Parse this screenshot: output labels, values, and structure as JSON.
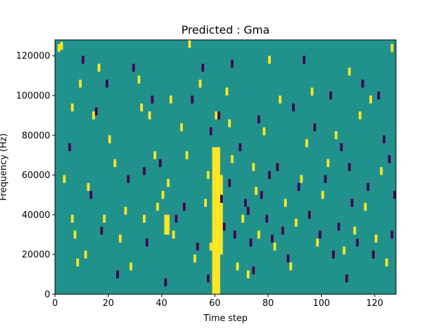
{
  "chart_data": {
    "type": "heatmap",
    "title": "Predicted : Gma",
    "xlabel": "Time step",
    "ylabel": "Frequency (Hz)",
    "xlim": [
      0,
      128
    ],
    "ylim": [
      0,
      128000
    ],
    "x_ticks": [
      0,
      20,
      40,
      60,
      80,
      100,
      120
    ],
    "y_ticks": [
      0,
      20000,
      40000,
      60000,
      80000,
      100000,
      120000
    ],
    "n_time_steps": 128,
    "n_freq_bins": 128,
    "colormap": "viridis",
    "values": [
      -1,
      0,
      1
    ],
    "colors": {
      "-1": "#440154",
      "0": "#21918c",
      "1": "#fde725"
    },
    "background_value": 0,
    "bands_value_1": [
      {
        "t0": 59,
        "t1": 62,
        "f0": 0,
        "f1": 74000
      },
      {
        "t0": 62,
        "t1": 63,
        "f0": 20000,
        "f1": 60000
      },
      {
        "t0": 41,
        "t1": 43,
        "f0": 30000,
        "f1": 40000
      }
    ],
    "cells_value_1": [
      [
        1,
        122000
      ],
      [
        2,
        123000
      ],
      [
        6,
        92000
      ],
      [
        6,
        36000
      ],
      [
        7,
        28000
      ],
      [
        8,
        14000
      ],
      [
        9,
        104000
      ],
      [
        12,
        52000
      ],
      [
        14,
        88000
      ],
      [
        16,
        112000
      ],
      [
        18,
        36000
      ],
      [
        20,
        76000
      ],
      [
        22,
        64000
      ],
      [
        24,
        26000
      ],
      [
        26,
        40000
      ],
      [
        28,
        12000
      ],
      [
        31,
        106000
      ],
      [
        32,
        92000
      ],
      [
        33,
        36000
      ],
      [
        35,
        88000
      ],
      [
        38,
        42000
      ],
      [
        40,
        48000
      ],
      [
        42,
        54000
      ],
      [
        43,
        96000
      ],
      [
        44,
        28000
      ],
      [
        47,
        82000
      ],
      [
        49,
        68000
      ],
      [
        50,
        124000
      ],
      [
        52,
        16000
      ],
      [
        54,
        104000
      ],
      [
        56,
        44000
      ],
      [
        57,
        58000
      ],
      [
        58,
        22000
      ],
      [
        60,
        88000
      ],
      [
        64,
        100000
      ],
      [
        65,
        84000
      ],
      [
        66,
        66000
      ],
      [
        70,
        36000
      ],
      [
        72,
        8000
      ],
      [
        74,
        62000
      ],
      [
        75,
        50000
      ],
      [
        76,
        28000
      ],
      [
        78,
        80000
      ],
      [
        80,
        116000
      ],
      [
        82,
        22000
      ],
      [
        84,
        96000
      ],
      [
        86,
        44000
      ],
      [
        88,
        12000
      ],
      [
        90,
        34000
      ],
      [
        92,
        56000
      ],
      [
        94,
        74000
      ],
      [
        96,
        100000
      ],
      [
        98,
        24000
      ],
      [
        100,
        48000
      ],
      [
        102,
        64000
      ],
      [
        105,
        78000
      ],
      [
        108,
        20000
      ],
      [
        110,
        110000
      ],
      [
        112,
        30000
      ],
      [
        114,
        88000
      ],
      [
        116,
        42000
      ],
      [
        118,
        96000
      ],
      [
        120,
        26000
      ],
      [
        122,
        60000
      ],
      [
        124,
        14000
      ],
      [
        126,
        122000
      ],
      [
        3,
        56000
      ],
      [
        11,
        18000
      ],
      [
        37,
        68000
      ],
      [
        68,
        12000
      ]
    ],
    "cells_value_neg1": [
      [
        5,
        72000
      ],
      [
        10,
        116000
      ],
      [
        13,
        48000
      ],
      [
        17,
        30000
      ],
      [
        19,
        104000
      ],
      [
        23,
        8000
      ],
      [
        27,
        56000
      ],
      [
        29,
        112000
      ],
      [
        34,
        24000
      ],
      [
        36,
        96000
      ],
      [
        39,
        64000
      ],
      [
        41,
        4000
      ],
      [
        45,
        36000
      ],
      [
        48,
        42000
      ],
      [
        51,
        96000
      ],
      [
        53,
        22000
      ],
      [
        55,
        112000
      ],
      [
        57,
        6000
      ],
      [
        61,
        88000
      ],
      [
        63,
        32000
      ],
      [
        65,
        54000
      ],
      [
        67,
        28000
      ],
      [
        69,
        72000
      ],
      [
        71,
        44000
      ],
      [
        73,
        24000
      ],
      [
        74,
        10000
      ],
      [
        76,
        86000
      ],
      [
        77,
        48000
      ],
      [
        79,
        36000
      ],
      [
        81,
        26000
      ],
      [
        83,
        62000
      ],
      [
        85,
        30000
      ],
      [
        87,
        16000
      ],
      [
        89,
        92000
      ],
      [
        91,
        52000
      ],
      [
        93,
        116000
      ],
      [
        95,
        38000
      ],
      [
        97,
        82000
      ],
      [
        99,
        28000
      ],
      [
        101,
        56000
      ],
      [
        103,
        98000
      ],
      [
        106,
        32000
      ],
      [
        107,
        72000
      ],
      [
        109,
        6000
      ],
      [
        111,
        44000
      ],
      [
        113,
        24000
      ],
      [
        115,
        104000
      ],
      [
        117,
        52000
      ],
      [
        119,
        18000
      ],
      [
        121,
        98000
      ],
      [
        123,
        76000
      ],
      [
        125,
        66000
      ],
      [
        127,
        48000
      ],
      [
        15,
        90000
      ],
      [
        33,
        60000
      ],
      [
        58,
        80000
      ],
      [
        62,
        46000
      ],
      [
        66,
        114000
      ],
      [
        72,
        40000
      ],
      [
        80,
        58000
      ],
      [
        104,
        18000
      ],
      [
        110,
        62000
      ],
      [
        126,
        28000
      ]
    ]
  }
}
